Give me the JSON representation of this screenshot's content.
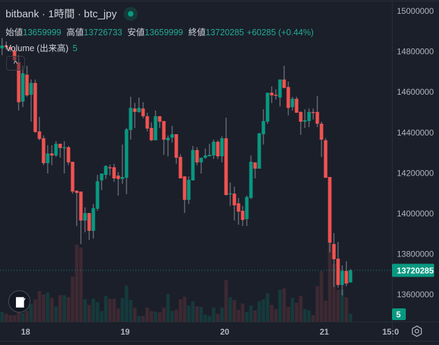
{
  "header": {
    "title": "bitbank · 1時間 · btc_jpy",
    "ohlc": {
      "open_label": "始値",
      "open": "13659999",
      "high_label": "高値",
      "high": "13726733",
      "low_label": "安値",
      "low": "13659999",
      "close_label": "終値",
      "close": "13720285",
      "change": "+60285 (+0.44%)"
    },
    "volume_label": "Volume (出来高)",
    "volume_value": "5"
  },
  "collapse_icon": "^",
  "logo_text": "TV",
  "current_price_tag": "13720285",
  "volume_tag": "5",
  "colors": {
    "up": "#089981",
    "down": "#ef5350",
    "up_volume": "#163a3c",
    "down_volume": "#3e2932",
    "background": "#1b1f2a"
  },
  "chart_data": {
    "type": "candlestick",
    "title": "bitbank · 1時間 · btc_jpy",
    "ylim": [
      13500000,
      15050000
    ],
    "yticks": [
      "15000000",
      "14800000",
      "14600000",
      "14400000",
      "14200000",
      "14000000",
      "13800000",
      "13600000"
    ],
    "xticks": [
      {
        "label": "18",
        "index": 6
      },
      {
        "label": "19",
        "index": 30
      },
      {
        "label": "20",
        "index": 54
      },
      {
        "label": "21",
        "index": 78
      },
      {
        "label": "15:0",
        "index": 94
      }
    ],
    "last_price": 13720285,
    "candles_ohlc": [
      [
        14816000,
        14867000,
        14782000,
        14830000
      ],
      [
        14830000,
        14850000,
        14809000,
        14822000
      ],
      [
        14822000,
        14833000,
        14799000,
        14809000
      ],
      [
        14805000,
        14816000,
        14747000,
        14758000
      ],
      [
        14747000,
        14782000,
        14509000,
        14550000
      ],
      [
        14553000,
        14730000,
        14526000,
        14693000
      ],
      [
        14686000,
        14730000,
        14577000,
        14584000
      ],
      [
        14587000,
        14662000,
        14454000,
        14645000
      ],
      [
        14645000,
        14662000,
        14399000,
        14403000
      ],
      [
        14406000,
        14478000,
        14362000,
        14369000
      ],
      [
        14372000,
        14386000,
        14239000,
        14249000
      ],
      [
        14249000,
        14338000,
        14198000,
        14297000
      ],
      [
        14297000,
        14338000,
        14239000,
        14287000
      ],
      [
        14287000,
        14358000,
        14280000,
        14345000
      ],
      [
        14345000,
        14345000,
        14276000,
        14324000
      ],
      [
        14324000,
        14358000,
        14198000,
        14328000
      ],
      [
        14328000,
        14334000,
        14239000,
        14253000
      ],
      [
        14256000,
        14256000,
        14099000,
        14109000
      ],
      [
        14113000,
        14116000,
        13939000,
        14102000
      ],
      [
        14109000,
        14109000,
        13850000,
        13966000
      ],
      [
        13966000,
        14031000,
        13908000,
        14003000
      ],
      [
        14003000,
        14003000,
        13870000,
        13915000
      ],
      [
        13915000,
        14048000,
        13877000,
        14027000
      ],
      [
        14024000,
        14191000,
        14014000,
        14160000
      ],
      [
        14164000,
        14198000,
        14116000,
        14198000
      ],
      [
        14191000,
        14239000,
        14171000,
        14235000
      ],
      [
        14229000,
        14242000,
        14188000,
        14226000
      ],
      [
        14229000,
        14246000,
        14157000,
        14174000
      ],
      [
        14188000,
        14205000,
        14089000,
        14171000
      ],
      [
        14171000,
        14341000,
        14147000,
        14181000
      ],
      [
        14177000,
        14423000,
        14096000,
        14416000
      ],
      [
        14413000,
        14577000,
        14365000,
        14522000
      ],
      [
        14519000,
        14546000,
        14423000,
        14502000
      ],
      [
        14502000,
        14573000,
        14498000,
        14522000
      ],
      [
        14519000,
        14550000,
        14471000,
        14481000
      ],
      [
        14481000,
        14498000,
        14406000,
        14420000
      ],
      [
        14423000,
        14451000,
        14358000,
        14362000
      ],
      [
        14362000,
        14509000,
        14362000,
        14481000
      ],
      [
        14481000,
        14481000,
        14423000,
        14454000
      ],
      [
        14457000,
        14457000,
        14290000,
        14365000
      ],
      [
        14362000,
        14386000,
        14283000,
        14375000
      ],
      [
        14375000,
        14433000,
        14351000,
        14392000
      ],
      [
        14392000,
        14392000,
        14246000,
        14276000
      ],
      [
        14280000,
        14293000,
        14174000,
        14174000
      ],
      [
        14184000,
        14184000,
        14003000,
        14068000
      ],
      [
        14068000,
        14184000,
        14048000,
        14167000
      ],
      [
        14164000,
        14334000,
        14164000,
        14314000
      ],
      [
        14314000,
        14328000,
        14239000,
        14253000
      ],
      [
        14253000,
        14276000,
        14198000,
        14276000
      ],
      [
        14276000,
        14321000,
        14270000,
        14287000
      ],
      [
        14283000,
        14345000,
        14283000,
        14290000
      ],
      [
        14287000,
        14365000,
        14270000,
        14355000
      ],
      [
        14355000,
        14362000,
        14270000,
        14283000
      ],
      [
        14283000,
        14382000,
        14253000,
        14372000
      ],
      [
        14372000,
        14474000,
        14089000,
        14092000
      ],
      [
        14099000,
        14154000,
        14038000,
        14100000
      ],
      [
        14099000,
        14133000,
        13966000,
        14041000
      ],
      [
        14051000,
        14078000,
        13945000,
        14010000
      ],
      [
        14014000,
        14038000,
        13939000,
        13969000
      ],
      [
        13973000,
        14089000,
        13939000,
        14082000
      ],
      [
        14078000,
        14287000,
        14072000,
        14256000
      ],
      [
        14253000,
        14253000,
        14174000,
        14222000
      ],
      [
        14222000,
        14399000,
        14222000,
        14396000
      ],
      [
        14392000,
        14515000,
        14341000,
        14457000
      ],
      [
        14454000,
        14597000,
        14444000,
        14597000
      ],
      [
        14597000,
        14628000,
        14546000,
        14584000
      ],
      [
        14587000,
        14614000,
        14563000,
        14583000
      ],
      [
        14573000,
        14662000,
        14529000,
        14662000
      ],
      [
        14662000,
        14730000,
        14618000,
        14621000
      ],
      [
        14625000,
        14652000,
        14485000,
        14522000
      ],
      [
        14526000,
        14577000,
        14509000,
        14567000
      ],
      [
        14567000,
        14577000,
        14498000,
        14498000
      ],
      [
        14502000,
        14505000,
        14389000,
        14454000
      ],
      [
        14454000,
        14515000,
        14423000,
        14461000
      ],
      [
        14457000,
        14519000,
        14427000,
        14502000
      ],
      [
        14502000,
        14519000,
        14464000,
        14498000
      ],
      [
        14502000,
        14580000,
        14427000,
        14444000
      ],
      [
        14444000,
        14454000,
        14280000,
        14365000
      ],
      [
        14362000,
        14372000,
        14177000,
        14177000
      ],
      [
        14181000,
        14181000,
        13809000,
        13857000
      ],
      [
        13850000,
        13904000,
        13638000,
        13775000
      ],
      [
        13778000,
        13860000,
        13635000,
        13648000
      ],
      [
        13648000,
        13744000,
        13597000,
        13717000
      ],
      [
        13717000,
        13765000,
        13642000,
        13655000
      ],
      [
        13659999,
        13726733,
        13659999,
        13720285
      ]
    ],
    "volumes": [
      6.3,
      5,
      4.1,
      4.1,
      5.9,
      5.4,
      6.8,
      11.3,
      14.4,
      19.8,
      17.6,
      18.9,
      15.3,
      9.9,
      17.1,
      17.1,
      15.8,
      29.3,
      50,
      48.2,
      14.4,
      10.8,
      14.9,
      12.6,
      6.8,
      16.7,
      14.9,
      14.9,
      8.6,
      15.3,
      23.4,
      14,
      9,
      3.6,
      3.6,
      9,
      6.8,
      6.3,
      5.9,
      9,
      18,
      6.8,
      7.7,
      14.4,
      16.2,
      10.4,
      13.1,
      9.9,
      9.5,
      4.5,
      3.6,
      9,
      5,
      9,
      27,
      15.8,
      14,
      7.7,
      11.7,
      6.3,
      10.4,
      7.2,
      13.1,
      14.4,
      18.5,
      10.8,
      8.1,
      20.7,
      21.6,
      9.5,
      15.3,
      12.2,
      16.7,
      8.1,
      7.2,
      4.1,
      23,
      32.9,
      13.5,
      51.3,
      37.4,
      20.7,
      20.7,
      15.8,
      5
    ]
  }
}
